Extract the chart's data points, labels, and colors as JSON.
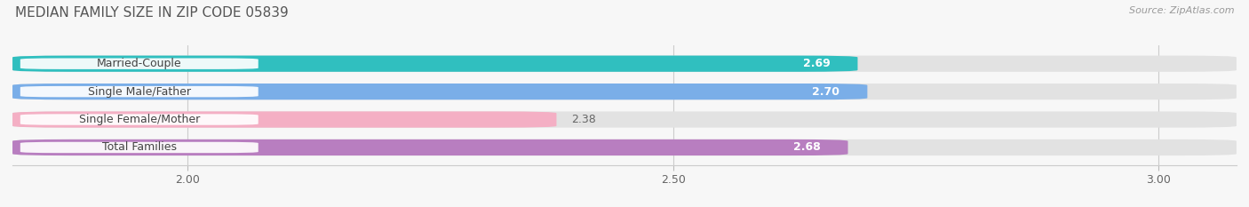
{
  "title": "MEDIAN FAMILY SIZE IN ZIP CODE 05839",
  "source": "Source: ZipAtlas.com",
  "categories": [
    "Married-Couple",
    "Single Male/Father",
    "Single Female/Mother",
    "Total Families"
  ],
  "values": [
    2.69,
    2.7,
    2.38,
    2.68
  ],
  "bar_colors": [
    "#30bfbf",
    "#7aaee8",
    "#f4afc4",
    "#b87ec0"
  ],
  "label_colors": [
    "white",
    "white",
    "#666666",
    "white"
  ],
  "xmin": 1.82,
  "xmax": 3.08,
  "xticks": [
    2.0,
    2.5,
    3.0
  ],
  "bar_height": 0.58,
  "background_color": "#f7f7f7",
  "bar_bg_color": "#e2e2e2",
  "title_fontsize": 11,
  "label_fontsize": 9,
  "value_fontsize": 9,
  "source_fontsize": 8
}
